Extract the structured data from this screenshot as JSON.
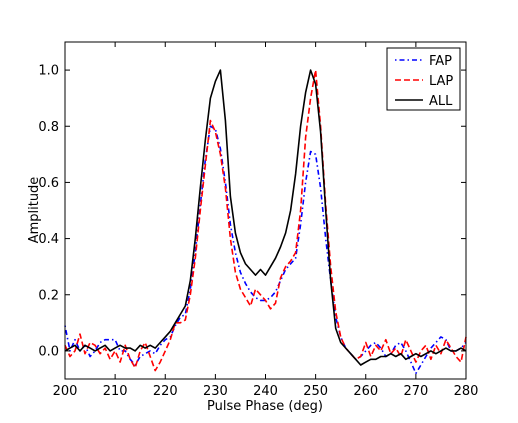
{
  "chart_data": {
    "type": "line",
    "title": "",
    "xlabel": "Pulse Phase (deg)",
    "ylabel": "Amplitude",
    "xlim": [
      200,
      280
    ],
    "ylim": [
      -0.1,
      1.1
    ],
    "xticks": [
      200,
      210,
      220,
      230,
      240,
      250,
      260,
      270,
      280
    ],
    "xtick_labels": [
      "200",
      "210",
      "220",
      "230",
      "240",
      "250",
      "260",
      "270",
      "280"
    ],
    "yticks": [
      0.0,
      0.2,
      0.4,
      0.6,
      0.8,
      1.0
    ],
    "ytick_labels": [
      "0.0",
      "0.2",
      "0.4",
      "0.6",
      "0.8",
      "1.0"
    ],
    "grid": false,
    "legend_position": "top-right",
    "series": [
      {
        "name": "FAP",
        "color": "#0000ff",
        "style": "dashdot",
        "points": [
          [
            200,
            0.09
          ],
          [
            201,
            0.0
          ],
          [
            202,
            0.04
          ],
          [
            203,
            0.0
          ],
          [
            204,
            0.02
          ],
          [
            205,
            -0.02
          ],
          [
            206,
            0.0
          ],
          [
            207,
            0.03
          ],
          [
            208,
            0.04
          ],
          [
            209,
            0.04
          ],
          [
            210,
            0.04
          ],
          [
            211,
            0.0
          ],
          [
            212,
            0.0
          ],
          [
            213,
            -0.03
          ],
          [
            214,
            -0.05
          ],
          [
            215,
            -0.02
          ],
          [
            216,
            -0.01
          ],
          [
            217,
            0.0
          ],
          [
            218,
            -0.01
          ],
          [
            219,
            0.02
          ],
          [
            220,
            0.04
          ],
          [
            221,
            0.05
          ],
          [
            222,
            0.09
          ],
          [
            223,
            0.12
          ],
          [
            224,
            0.13
          ],
          [
            225,
            0.22
          ],
          [
            226,
            0.35
          ],
          [
            227,
            0.52
          ],
          [
            228,
            0.68
          ],
          [
            229,
            0.8
          ],
          [
            230,
            0.79
          ],
          [
            231,
            0.72
          ],
          [
            232,
            0.6
          ],
          [
            233,
            0.45
          ],
          [
            234,
            0.35
          ],
          [
            235,
            0.28
          ],
          [
            236,
            0.24
          ],
          [
            237,
            0.21
          ],
          [
            238,
            0.19
          ],
          [
            239,
            0.18
          ],
          [
            240,
            0.18
          ],
          [
            241,
            0.19
          ],
          [
            242,
            0.21
          ],
          [
            243,
            0.25
          ],
          [
            244,
            0.29
          ],
          [
            245,
            0.31
          ],
          [
            246,
            0.33
          ],
          [
            247,
            0.45
          ],
          [
            248,
            0.6
          ],
          [
            249,
            0.71
          ],
          [
            250,
            0.7
          ],
          [
            251,
            0.58
          ],
          [
            252,
            0.4
          ],
          [
            253,
            0.25
          ],
          [
            254,
            0.12
          ],
          [
            255,
            0.05
          ],
          [
            256,
            0.01
          ],
          [
            257,
            -0.01
          ],
          [
            258,
            -0.03
          ],
          [
            259,
            -0.02
          ],
          [
            260,
            0.0
          ],
          [
            261,
            0.02
          ],
          [
            262,
            0.03
          ],
          [
            263,
            0.01
          ],
          [
            264,
            -0.02
          ],
          [
            265,
            -0.01
          ],
          [
            266,
            0.02
          ],
          [
            267,
            0.03
          ],
          [
            268,
            0.0
          ],
          [
            269,
            -0.04
          ],
          [
            270,
            -0.08
          ],
          [
            271,
            -0.05
          ],
          [
            272,
            -0.02
          ],
          [
            273,
            0.01
          ],
          [
            274,
            0.03
          ],
          [
            275,
            0.05
          ],
          [
            276,
            0.04
          ],
          [
            277,
            0.0
          ],
          [
            278,
            0.0
          ],
          [
            279,
            0.01
          ],
          [
            280,
            0.03
          ]
        ]
      },
      {
        "name": "LAP",
        "color": "#ff0000",
        "style": "dashed",
        "points": [
          [
            200,
            0.02
          ],
          [
            201,
            -0.02
          ],
          [
            202,
            0.0
          ],
          [
            203,
            0.06
          ],
          [
            204,
            -0.01
          ],
          [
            205,
            0.03
          ],
          [
            206,
            0.02
          ],
          [
            207,
            -0.01
          ],
          [
            208,
            0.01
          ],
          [
            209,
            -0.03
          ],
          [
            210,
            0.0
          ],
          [
            211,
            -0.04
          ],
          [
            212,
            0.02
          ],
          [
            213,
            -0.03
          ],
          [
            214,
            -0.06
          ],
          [
            215,
            0.0
          ],
          [
            216,
            0.03
          ],
          [
            217,
            -0.02
          ],
          [
            218,
            -0.07
          ],
          [
            219,
            -0.04
          ],
          [
            220,
            0.0
          ],
          [
            221,
            0.04
          ],
          [
            222,
            0.1
          ],
          [
            223,
            0.1
          ],
          [
            224,
            0.11
          ],
          [
            225,
            0.2
          ],
          [
            226,
            0.33
          ],
          [
            227,
            0.5
          ],
          [
            228,
            0.66
          ],
          [
            229,
            0.82
          ],
          [
            230,
            0.78
          ],
          [
            231,
            0.7
          ],
          [
            232,
            0.58
          ],
          [
            233,
            0.4
          ],
          [
            234,
            0.28
          ],
          [
            235,
            0.22
          ],
          [
            236,
            0.19
          ],
          [
            237,
            0.16
          ],
          [
            238,
            0.22
          ],
          [
            239,
            0.2
          ],
          [
            240,
            0.18
          ],
          [
            241,
            0.15
          ],
          [
            242,
            0.17
          ],
          [
            243,
            0.26
          ],
          [
            244,
            0.3
          ],
          [
            245,
            0.32
          ],
          [
            246,
            0.35
          ],
          [
            247,
            0.5
          ],
          [
            248,
            0.76
          ],
          [
            249,
            0.9
          ],
          [
            250,
            1.0
          ],
          [
            251,
            0.8
          ],
          [
            252,
            0.52
          ],
          [
            253,
            0.3
          ],
          [
            254,
            0.14
          ],
          [
            255,
            0.05
          ],
          [
            256,
            0.01
          ],
          [
            257,
            -0.01
          ],
          [
            258,
            -0.03
          ],
          [
            259,
            -0.02
          ],
          [
            260,
            0.03
          ],
          [
            261,
            -0.02
          ],
          [
            262,
            0.02
          ],
          [
            263,
            0.0
          ],
          [
            264,
            0.04
          ],
          [
            265,
            -0.01
          ],
          [
            266,
            0.01
          ],
          [
            267,
            -0.02
          ],
          [
            268,
            0.04
          ],
          [
            269,
            0.0
          ],
          [
            270,
            -0.04
          ],
          [
            271,
            0.0
          ],
          [
            272,
            0.02
          ],
          [
            273,
            -0.03
          ],
          [
            274,
            0.02
          ],
          [
            275,
            -0.01
          ],
          [
            276,
            0.04
          ],
          [
            277,
            0.01
          ],
          [
            278,
            -0.02
          ],
          [
            279,
            -0.04
          ],
          [
            280,
            0.05
          ]
        ]
      },
      {
        "name": "ALL",
        "color": "#000000",
        "style": "solid",
        "points": [
          [
            200,
            0.0
          ],
          [
            201,
            0.01
          ],
          [
            202,
            0.02
          ],
          [
            203,
            0.0
          ],
          [
            204,
            0.02
          ],
          [
            205,
            0.01
          ],
          [
            206,
            0.0
          ],
          [
            207,
            0.01
          ],
          [
            208,
            0.02
          ],
          [
            209,
            0.0
          ],
          [
            210,
            0.01
          ],
          [
            211,
            0.02
          ],
          [
            212,
            0.01
          ],
          [
            213,
            0.01
          ],
          [
            214,
            0.0
          ],
          [
            215,
            0.02
          ],
          [
            216,
            0.01
          ],
          [
            217,
            0.02
          ],
          [
            218,
            0.01
          ],
          [
            219,
            0.03
          ],
          [
            220,
            0.05
          ],
          [
            221,
            0.07
          ],
          [
            222,
            0.1
          ],
          [
            223,
            0.13
          ],
          [
            224,
            0.16
          ],
          [
            225,
            0.25
          ],
          [
            226,
            0.4
          ],
          [
            227,
            0.58
          ],
          [
            228,
            0.75
          ],
          [
            229,
            0.9
          ],
          [
            230,
            0.96
          ],
          [
            231,
            1.0
          ],
          [
            232,
            0.82
          ],
          [
            233,
            0.55
          ],
          [
            234,
            0.42
          ],
          [
            235,
            0.35
          ],
          [
            236,
            0.31
          ],
          [
            237,
            0.29
          ],
          [
            238,
            0.27
          ],
          [
            239,
            0.29
          ],
          [
            240,
            0.27
          ],
          [
            241,
            0.3
          ],
          [
            242,
            0.33
          ],
          [
            243,
            0.37
          ],
          [
            244,
            0.42
          ],
          [
            245,
            0.5
          ],
          [
            246,
            0.63
          ],
          [
            247,
            0.8
          ],
          [
            248,
            0.92
          ],
          [
            249,
            1.0
          ],
          [
            250,
            0.95
          ],
          [
            251,
            0.78
          ],
          [
            252,
            0.5
          ],
          [
            253,
            0.25
          ],
          [
            254,
            0.08
          ],
          [
            255,
            0.03
          ],
          [
            256,
            0.01
          ],
          [
            257,
            -0.01
          ],
          [
            258,
            -0.03
          ],
          [
            259,
            -0.05
          ],
          [
            260,
            -0.04
          ],
          [
            261,
            -0.03
          ],
          [
            262,
            -0.03
          ],
          [
            263,
            -0.02
          ],
          [
            264,
            -0.02
          ],
          [
            265,
            -0.01
          ],
          [
            266,
            -0.02
          ],
          [
            267,
            -0.01
          ],
          [
            268,
            -0.03
          ],
          [
            269,
            -0.02
          ],
          [
            270,
            -0.01
          ],
          [
            271,
            -0.02
          ],
          [
            272,
            -0.01
          ],
          [
            273,
            0.0
          ],
          [
            274,
            -0.01
          ],
          [
            275,
            0.0
          ],
          [
            276,
            0.01
          ],
          [
            277,
            0.0
          ],
          [
            278,
            0.0
          ],
          [
            279,
            0.01
          ],
          [
            280,
            0.0
          ]
        ]
      }
    ]
  }
}
